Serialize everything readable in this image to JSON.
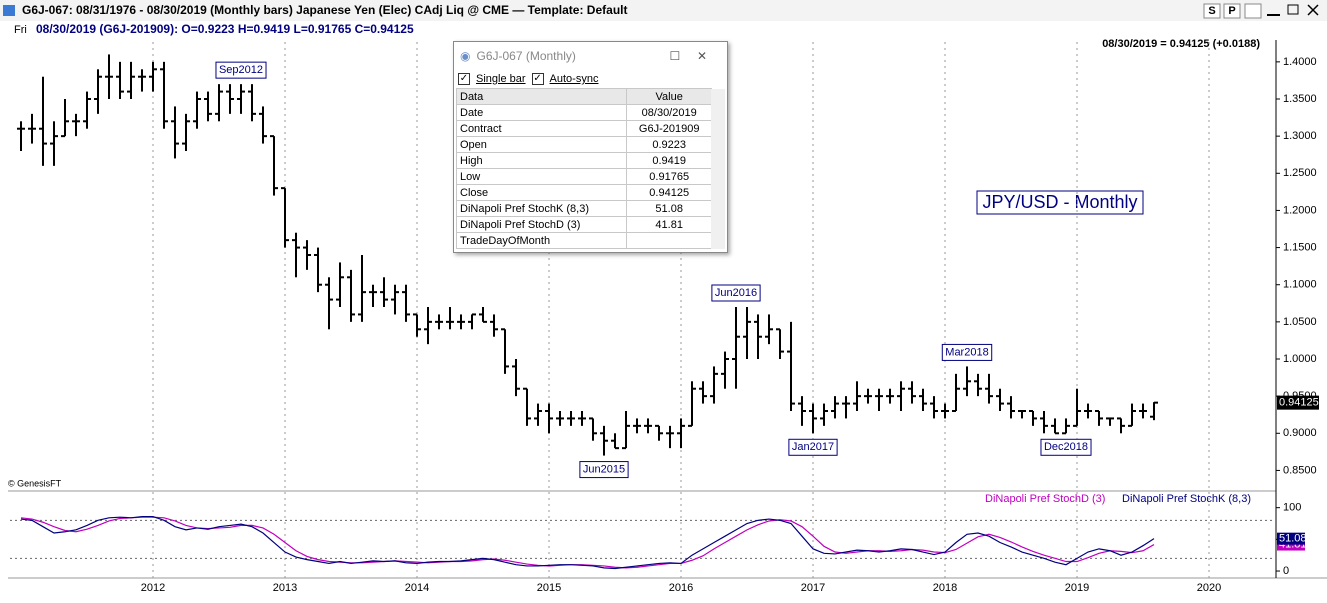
{
  "header": {
    "title": "G6J-067:  08/31/1976 - 08/30/2019  (Monthly bars)   Japanese Yen (Elec) CAdj Liq @ CME  —  Template: Default",
    "day": "Fri",
    "bar_info": "08/30/2019 (G6J-201909):  O=0.9223  H=0.9419  L=0.91765  C=0.94125",
    "last_change": "08/30/2019 = 0.94125 (+0.0188)",
    "buttons": [
      "S",
      "P"
    ]
  },
  "data_window": {
    "title": "G6J-067 (Monthly)",
    "options": [
      "Single bar",
      "Auto-sync"
    ],
    "columns": [
      "Data",
      "Value"
    ],
    "rows": [
      [
        "Date",
        "08/30/2019"
      ],
      [
        "Contract",
        "G6J-201909"
      ],
      [
        "Open",
        "0.9223"
      ],
      [
        "High",
        "0.9419"
      ],
      [
        "Low",
        "0.91765"
      ],
      [
        "Close",
        "0.94125"
      ],
      [
        "DiNapoli Pref StochK (8,3)",
        "51.08"
      ],
      [
        "DiNapoli Pref StochD (3)",
        "41.81"
      ],
      [
        "TradeDayOfMonth"
      ]
    ]
  },
  "chart_data": [
    {
      "type": "ohlc",
      "watermark": "JPY/USD - Monthly",
      "copyright": "© GenesisFT",
      "color": "#000000",
      "grid": true,
      "x": [
        "2011-01",
        "2011-02",
        "2011-03",
        "2011-04",
        "2011-05",
        "2011-06",
        "2011-07",
        "2011-08",
        "2011-09",
        "2011-10",
        "2011-11",
        "2011-12",
        "2012-01",
        "2012-02",
        "2012-03",
        "2012-04",
        "2012-05",
        "2012-06",
        "2012-07",
        "2012-08",
        "2012-09",
        "2012-10",
        "2012-11",
        "2012-12",
        "2013-01",
        "2013-02",
        "2013-03",
        "2013-04",
        "2013-05",
        "2013-06",
        "2013-07",
        "2013-08",
        "2013-09",
        "2013-10",
        "2013-11",
        "2013-12",
        "2014-01",
        "2014-02",
        "2014-03",
        "2014-04",
        "2014-05",
        "2014-06",
        "2014-07",
        "2014-08",
        "2014-09",
        "2014-10",
        "2014-11",
        "2014-12",
        "2015-01",
        "2015-02",
        "2015-03",
        "2015-04",
        "2015-05",
        "2015-06",
        "2015-07",
        "2015-08",
        "2015-09",
        "2015-10",
        "2015-11",
        "2015-12",
        "2016-01",
        "2016-02",
        "2016-03",
        "2016-04",
        "2016-05",
        "2016-06",
        "2016-07",
        "2016-08",
        "2016-09",
        "2016-10",
        "2016-11",
        "2016-12",
        "2017-01",
        "2017-02",
        "2017-03",
        "2017-04",
        "2017-05",
        "2017-06",
        "2017-07",
        "2017-08",
        "2017-09",
        "2017-10",
        "2017-11",
        "2017-12",
        "2018-01",
        "2018-02",
        "2018-03",
        "2018-04",
        "2018-05",
        "2018-06",
        "2018-07",
        "2018-08",
        "2018-09",
        "2018-10",
        "2018-11",
        "2018-12",
        "2019-01",
        "2019-02",
        "2019-03",
        "2019-04",
        "2019-05",
        "2019-06",
        "2019-07",
        "2019-08"
      ],
      "open": [
        1.31,
        1.31,
        1.31,
        1.29,
        1.3,
        1.32,
        1.32,
        1.35,
        1.38,
        1.38,
        1.36,
        1.38,
        1.38,
        1.39,
        1.32,
        1.29,
        1.32,
        1.35,
        1.33,
        1.36,
        1.35,
        1.36,
        1.33,
        1.3,
        1.23,
        1.16,
        1.15,
        1.14,
        1.1,
        1.08,
        1.11,
        1.06,
        1.09,
        1.09,
        1.08,
        1.09,
        1.06,
        1.04,
        1.05,
        1.05,
        1.05,
        1.05,
        1.06,
        1.05,
        1.04,
        0.99,
        0.96,
        0.92,
        0.93,
        0.92,
        0.92,
        0.92,
        0.92,
        0.9,
        0.89,
        0.88,
        0.91,
        0.91,
        0.91,
        0.9,
        0.9,
        0.91,
        0.96,
        0.95,
        0.98,
        1.0,
        1.03,
        1.05,
        1.03,
        1.04,
        1.01,
        0.94,
        0.93,
        0.92,
        0.93,
        0.94,
        0.94,
        0.95,
        0.95,
        0.95,
        0.95,
        0.96,
        0.95,
        0.94,
        0.93,
        0.93,
        0.96,
        0.97,
        0.96,
        0.95,
        0.94,
        0.93,
        0.93,
        0.92,
        0.91,
        0.9,
        0.91,
        0.93,
        0.93,
        0.92,
        0.92,
        0.91,
        0.93,
        0.9223
      ],
      "high": [
        1.32,
        1.33,
        1.38,
        1.32,
        1.35,
        1.33,
        1.36,
        1.39,
        1.41,
        1.4,
        1.4,
        1.39,
        1.4,
        1.4,
        1.34,
        1.33,
        1.36,
        1.36,
        1.37,
        1.37,
        1.37,
        1.37,
        1.34,
        1.3,
        1.23,
        1.17,
        1.16,
        1.15,
        1.11,
        1.13,
        1.12,
        1.14,
        1.1,
        1.11,
        1.1,
        1.1,
        1.06,
        1.07,
        1.06,
        1.07,
        1.06,
        1.06,
        1.07,
        1.06,
        1.04,
        1.0,
        0.96,
        0.94,
        0.94,
        0.93,
        0.93,
        0.93,
        0.92,
        0.91,
        0.9,
        0.93,
        0.92,
        0.92,
        0.91,
        0.91,
        0.92,
        0.97,
        0.97,
        0.99,
        1.01,
        1.07,
        1.07,
        1.06,
        1.06,
        1.04,
        1.05,
        0.95,
        0.94,
        0.94,
        0.95,
        0.95,
        0.97,
        0.96,
        0.96,
        0.96,
        0.97,
        0.97,
        0.96,
        0.95,
        0.94,
        0.98,
        0.99,
        0.98,
        0.98,
        0.96,
        0.95,
        0.93,
        0.93,
        0.93,
        0.92,
        0.92,
        0.96,
        0.94,
        0.93,
        0.92,
        0.92,
        0.94,
        0.94,
        0.9419
      ],
      "low": [
        1.28,
        1.29,
        1.26,
        1.26,
        1.3,
        1.3,
        1.31,
        1.33,
        1.35,
        1.35,
        1.35,
        1.36,
        1.36,
        1.31,
        1.27,
        1.28,
        1.31,
        1.32,
        1.32,
        1.33,
        1.33,
        1.32,
        1.29,
        1.22,
        1.15,
        1.11,
        1.12,
        1.09,
        1.04,
        1.07,
        1.05,
        1.05,
        1.07,
        1.07,
        1.06,
        1.05,
        1.03,
        1.02,
        1.04,
        1.04,
        1.04,
        1.04,
        1.05,
        1.03,
        0.98,
        0.95,
        0.91,
        0.91,
        0.9,
        0.91,
        0.91,
        0.91,
        0.89,
        0.87,
        0.88,
        0.88,
        0.9,
        0.9,
        0.89,
        0.88,
        0.88,
        0.91,
        0.94,
        0.94,
        0.96,
        0.96,
        1.0,
        1.0,
        1.02,
        1.0,
        0.93,
        0.91,
        0.9,
        0.91,
        0.92,
        0.92,
        0.93,
        0.94,
        0.93,
        0.94,
        0.93,
        0.94,
        0.93,
        0.92,
        0.92,
        0.93,
        0.95,
        0.95,
        0.94,
        0.93,
        0.92,
        0.92,
        0.91,
        0.9,
        0.9,
        0.9,
        0.91,
        0.92,
        0.91,
        0.91,
        0.9,
        0.91,
        0.92,
        0.91765
      ],
      "close": [
        1.31,
        1.31,
        1.29,
        1.3,
        1.32,
        1.32,
        1.35,
        1.38,
        1.38,
        1.36,
        1.38,
        1.38,
        1.39,
        1.32,
        1.29,
        1.32,
        1.35,
        1.33,
        1.36,
        1.35,
        1.36,
        1.33,
        1.3,
        1.23,
        1.16,
        1.15,
        1.14,
        1.1,
        1.08,
        1.11,
        1.06,
        1.09,
        1.09,
        1.08,
        1.09,
        1.06,
        1.04,
        1.05,
        1.05,
        1.05,
        1.05,
        1.06,
        1.05,
        1.04,
        0.99,
        0.96,
        0.92,
        0.93,
        0.92,
        0.92,
        0.92,
        0.92,
        0.9,
        0.89,
        0.88,
        0.91,
        0.91,
        0.91,
        0.9,
        0.9,
        0.91,
        0.96,
        0.95,
        0.98,
        1.0,
        1.03,
        1.05,
        1.03,
        1.04,
        1.01,
        0.94,
        0.93,
        0.92,
        0.93,
        0.94,
        0.94,
        0.95,
        0.95,
        0.95,
        0.95,
        0.96,
        0.95,
        0.94,
        0.93,
        0.93,
        0.96,
        0.97,
        0.96,
        0.95,
        0.94,
        0.93,
        0.93,
        0.92,
        0.91,
        0.9,
        0.91,
        0.93,
        0.93,
        0.92,
        0.92,
        0.91,
        0.93,
        0.93,
        0.94125
      ],
      "annotations": [
        {
          "text": "Sep2012",
          "at": "2012-09",
          "side": "high"
        },
        {
          "text": "Jun2015",
          "at": "2015-06",
          "side": "low"
        },
        {
          "text": "Jun2016",
          "at": "2016-06",
          "side": "high"
        },
        {
          "text": "Jan2017",
          "at": "2017-01",
          "side": "low"
        },
        {
          "text": "Mar2018",
          "at": "2018-03",
          "side": "high"
        },
        {
          "text": "Dec2018",
          "at": "2018-12",
          "side": "low"
        }
      ],
      "xlim": [
        "2010-12",
        "2020-07"
      ],
      "xticks": [
        "2012",
        "2013",
        "2014",
        "2015",
        "2016",
        "2017",
        "2018",
        "2019",
        "2020"
      ],
      "ylim": [
        0.825,
        1.42
      ],
      "yticks": [
        {
          "value": 0.85,
          "label": "0.8500"
        },
        {
          "value": 0.9,
          "label": "0.9000"
        },
        {
          "value": 0.95,
          "label": "0.9500"
        },
        {
          "value": 1.0,
          "label": "1.0000"
        },
        {
          "value": 1.05,
          "label": "1.0500"
        },
        {
          "value": 1.1,
          "label": "1.1000"
        },
        {
          "value": 1.15,
          "label": "1.1500"
        },
        {
          "value": 1.2,
          "label": "1.2000"
        },
        {
          "value": 1.25,
          "label": "1.2500"
        },
        {
          "value": 1.3,
          "label": "1.3000"
        },
        {
          "value": 1.35,
          "label": "1.3500"
        },
        {
          "value": 1.4,
          "label": "1.4000"
        }
      ]
    },
    {
      "type": "line",
      "ylim": [
        -11,
        120
      ],
      "yticks": [
        0,
        50,
        100
      ],
      "levels": [
        20,
        80
      ],
      "x": [
        "2011-01",
        "2011-02",
        "2011-03",
        "2011-04",
        "2011-05",
        "2011-06",
        "2011-07",
        "2011-08",
        "2011-09",
        "2011-10",
        "2011-11",
        "2011-12",
        "2012-01",
        "2012-02",
        "2012-03",
        "2012-04",
        "2012-05",
        "2012-06",
        "2012-07",
        "2012-08",
        "2012-09",
        "2012-10",
        "2012-11",
        "2012-12",
        "2013-01",
        "2013-02",
        "2013-03",
        "2013-04",
        "2013-05",
        "2013-06",
        "2013-07",
        "2013-08",
        "2013-09",
        "2013-10",
        "2013-11",
        "2013-12",
        "2014-01",
        "2014-02",
        "2014-03",
        "2014-04",
        "2014-05",
        "2014-06",
        "2014-07",
        "2014-08",
        "2014-09",
        "2014-10",
        "2014-11",
        "2014-12",
        "2015-01",
        "2015-02",
        "2015-03",
        "2015-04",
        "2015-05",
        "2015-06",
        "2015-07",
        "2015-08",
        "2015-09",
        "2015-10",
        "2015-11",
        "2015-12",
        "2016-01",
        "2016-02",
        "2016-03",
        "2016-04",
        "2016-05",
        "2016-06",
        "2016-07",
        "2016-08",
        "2016-09",
        "2016-10",
        "2016-11",
        "2016-12",
        "2017-01",
        "2017-02",
        "2017-03",
        "2017-04",
        "2017-05",
        "2017-06",
        "2017-07",
        "2017-08",
        "2017-09",
        "2017-10",
        "2017-11",
        "2017-12",
        "2018-01",
        "2018-02",
        "2018-03",
        "2018-04",
        "2018-05",
        "2018-06",
        "2018-07",
        "2018-08",
        "2018-09",
        "2018-10",
        "2018-11",
        "2018-12",
        "2019-01",
        "2019-02",
        "2019-03",
        "2019-04",
        "2019-05",
        "2019-06",
        "2019-07",
        "2019-08"
      ],
      "series": [
        {
          "name": "DiNapoli Pref StochD (3)",
          "color": "#c000c0",
          "values": [
            84,
            82,
            77,
            70,
            64,
            62,
            66,
            72,
            79,
            83,
            84,
            85,
            85,
            84,
            79,
            72,
            68,
            67,
            68,
            69,
            72,
            72,
            68,
            58,
            45,
            32,
            23,
            18,
            15,
            14,
            13,
            13,
            14,
            15,
            16,
            15,
            14,
            13,
            14,
            15,
            15,
            16,
            18,
            19,
            17,
            14,
            11,
            9,
            8,
            9,
            10,
            10,
            9,
            8,
            6,
            5,
            6,
            8,
            10,
            12,
            12,
            17,
            24,
            35,
            45,
            55,
            65,
            73,
            79,
            81,
            79,
            70,
            55,
            39,
            30,
            28,
            30,
            32,
            32,
            31,
            32,
            34,
            33,
            30,
            29,
            34,
            44,
            54,
            58,
            53,
            46,
            38,
            31,
            25,
            20,
            15,
            15,
            21,
            28,
            32,
            31,
            29,
            32,
            41.81
          ]
        },
        {
          "name": "DiNapoli Pref StochK (8,3)",
          "color": "#000080",
          "values": [
            82,
            80,
            70,
            60,
            62,
            65,
            72,
            80,
            84,
            85,
            84,
            86,
            86,
            80,
            70,
            65,
            68,
            66,
            70,
            72,
            74,
            70,
            60,
            45,
            30,
            22,
            18,
            15,
            12,
            15,
            12,
            14,
            16,
            15,
            16,
            13,
            12,
            14,
            15,
            15,
            16,
            18,
            20,
            18,
            14,
            10,
            8,
            8,
            9,
            10,
            10,
            9,
            8,
            5,
            4,
            6,
            8,
            10,
            12,
            13,
            12,
            25,
            35,
            45,
            55,
            65,
            75,
            80,
            82,
            80,
            75,
            55,
            35,
            28,
            27,
            30,
            33,
            32,
            30,
            32,
            35,
            34,
            30,
            26,
            30,
            45,
            58,
            60,
            55,
            45,
            38,
            30,
            25,
            20,
            14,
            10,
            20,
            30,
            35,
            32,
            25,
            30,
            40,
            51.08
          ]
        }
      ]
    }
  ]
}
